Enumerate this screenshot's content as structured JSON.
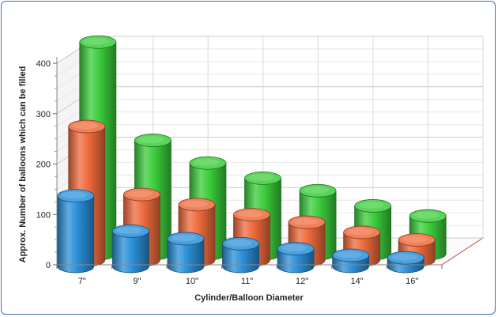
{
  "chart_data": {
    "type": "bar",
    "style": "3d-cylinder",
    "title": "",
    "xlabel": "Cylinder/Balloon Diameter",
    "ylabel": "Approx. Number of balloons which can be filled",
    "categories": [
      "7\"",
      "9\"",
      "10\"",
      "11\"",
      "12\"",
      "14\"",
      "16\""
    ],
    "ylim": [
      0,
      400
    ],
    "yticks": [
      0,
      100,
      200,
      300,
      400
    ],
    "grid": true,
    "legend": "none",
    "series": [
      {
        "values": [
          140,
          70,
          55,
          45,
          35,
          22,
          17
        ],
        "color": "#2a8fd8"
      },
      {
        "values": [
          265,
          130,
          110,
          90,
          75,
          55,
          40
        ],
        "color": "#ef6a3c"
      },
      {
        "values": [
          420,
          225,
          180,
          150,
          125,
          95,
          75
        ],
        "color": "#3bcc3b"
      }
    ]
  }
}
